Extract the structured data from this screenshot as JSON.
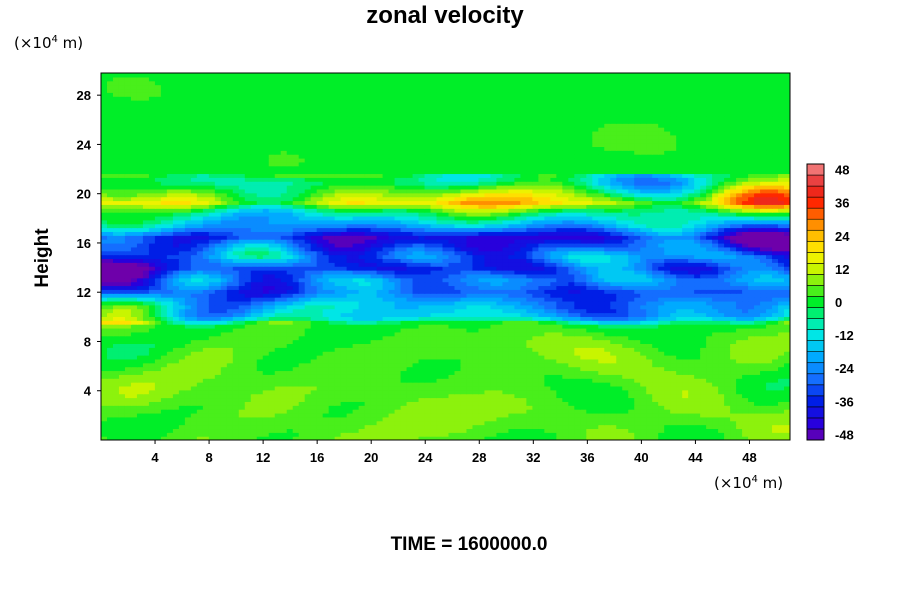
{
  "chart_data": {
    "type": "heatmap",
    "title": "zonal velocity",
    "ylabel": "Height",
    "x_unit": "(×10",
    "x_unit_exp": "4",
    "x_unit_suffix": " m)",
    "y_unit": "(×10",
    "y_unit_exp": "4",
    "y_unit_suffix": " m)",
    "footer": "TIME = 1600000.0",
    "xlim": [
      0,
      51
    ],
    "ylim": [
      0,
      29.8
    ],
    "xticks": [
      4,
      8,
      12,
      16,
      20,
      24,
      28,
      32,
      36,
      40,
      44,
      48
    ],
    "yticks": [
      4,
      8,
      12,
      16,
      20,
      24,
      28
    ],
    "colorbar": {
      "min": -50,
      "max": 50,
      "step": 4,
      "ticks": [
        48,
        36,
        24,
        12,
        0,
        -12,
        -24,
        -36,
        -48
      ]
    },
    "field_description_profile": [
      {
        "height": 0,
        "value": 4
      },
      {
        "height": 4,
        "value": 5
      },
      {
        "height": 8,
        "value": 3
      },
      {
        "height": 9.5,
        "value": 1
      },
      {
        "height": 10,
        "value": -14
      },
      {
        "height": 11,
        "value": -18
      },
      {
        "height": 12,
        "value": -30
      },
      {
        "height": 13,
        "value": -26
      },
      {
        "height": 14,
        "value": -36
      },
      {
        "height": 15,
        "value": -24
      },
      {
        "height": 16.5,
        "value": -38
      },
      {
        "height": 17.5,
        "value": -18
      },
      {
        "height": 18.5,
        "value": -6
      },
      {
        "height": 19.3,
        "value": 14
      },
      {
        "height": 20.2,
        "value": 3
      },
      {
        "height": 21,
        "value": -6
      },
      {
        "height": 22,
        "value": 1
      },
      {
        "height": 29.8,
        "value": 0
      }
    ]
  },
  "colors": {
    "background": "#ffffff",
    "frame": "#000000"
  }
}
